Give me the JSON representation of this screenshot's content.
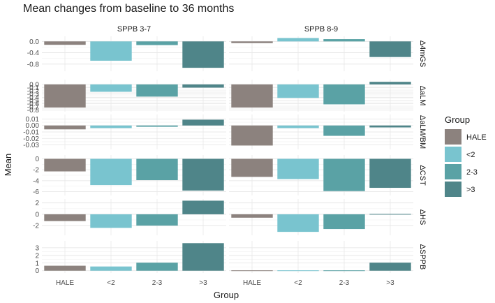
{
  "chart_data": {
    "type": "bar",
    "title": "Mean changes from baseline to 36 months",
    "xlabel": "Group",
    "ylabel": "Mean",
    "categories": [
      "HALE",
      "<2",
      "2-3",
      ">3"
    ],
    "colors": [
      "#8c827e",
      "#79c4cf",
      "#5aa2a5",
      "#4f8589"
    ],
    "legend": {
      "title": "Group",
      "position": "right",
      "entries": [
        "HALE",
        "<2",
        "2-3",
        ">3"
      ]
    },
    "columns": [
      "SPPB 3-7",
      "SPPB 8-9"
    ],
    "rows": [
      {
        "label": "Δ4mGS",
        "ylim": [
          -1.05,
          0.18
        ],
        "ticks": [
          0.0,
          -0.4,
          -0.8
        ],
        "tick_labels": [
          "0.0",
          "-0.4",
          "-0.8"
        ],
        "values": [
          [
            -0.12,
            -0.68,
            -0.13,
            -0.93
          ],
          [
            -0.06,
            0.12,
            0.08,
            -0.55
          ]
        ]
      },
      {
        "label": "ΔaLM",
        "ylim": [
          -0.85,
          0.15
        ],
        "ticks": [
          0.0,
          -0.1,
          -0.2,
          -0.3,
          -0.4,
          -0.5,
          -0.6,
          -0.7,
          -0.8
        ],
        "tick_labels": [
          "0.0",
          "-0.1",
          "-0.2",
          "-0.3",
          "-0.4",
          "-0.5",
          "-0.6",
          "-0.7",
          "-0.8"
        ],
        "values": [
          [
            -0.72,
            -0.23,
            -0.38,
            -0.1
          ],
          [
            -0.72,
            -0.42,
            -0.62,
            0.08
          ]
        ]
      },
      {
        "label": "ΔaLM/BM",
        "ylim": [
          -0.037,
          0.017
        ],
        "ticks": [
          0.01,
          0.0,
          -0.01,
          -0.02,
          -0.03
        ],
        "tick_labels": [
          "0.01",
          "0.00",
          "-0.01",
          "-0.02",
          "-0.03"
        ],
        "values": [
          [
            -0.006,
            -0.004,
            -0.002,
            0.009
          ],
          [
            -0.031,
            -0.004,
            -0.016,
            -0.003
          ]
        ]
      },
      {
        "label": "ΔCST",
        "ylim": [
          -6.7,
          0.7
        ],
        "ticks": [
          0,
          -2,
          -4,
          -6
        ],
        "tick_labels": [
          "0",
          "-2",
          "-4",
          "-6"
        ],
        "values": [
          [
            -2.3,
            -4.8,
            -3.9,
            -5.8
          ],
          [
            -3.3,
            -3.7,
            -5.9,
            -5.3
          ]
        ]
      },
      {
        "label": "ΔHS",
        "ylim": [
          -3.7,
          2.7
        ],
        "ticks": [
          2,
          0,
          -2
        ],
        "tick_labels": [
          "2",
          "0",
          "-2"
        ],
        "values": [
          [
            -1.2,
            -2.4,
            -2.0,
            2.4
          ],
          [
            -0.6,
            -3.1,
            -2.6,
            0.1
          ]
        ]
      },
      {
        "label": "ΔSPPB",
        "ylim": [
          -0.3,
          3.9
        ],
        "ticks": [
          3,
          2,
          1,
          0
        ],
        "tick_labels": [
          "3",
          "2",
          "1",
          "0"
        ],
        "values": [
          [
            0.65,
            0.55,
            1.05,
            3.6
          ],
          [
            0.03,
            0.0,
            -0.05,
            1.05
          ]
        ]
      }
    ]
  }
}
